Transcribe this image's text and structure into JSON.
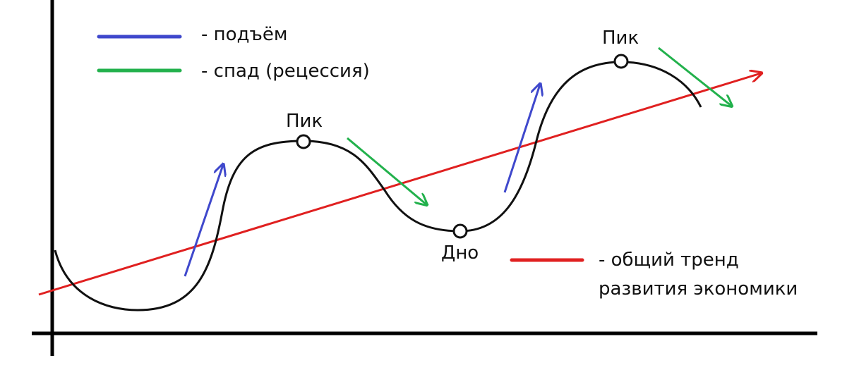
{
  "colors": {
    "curve": "#111111",
    "rise": "#3f48cc",
    "recession": "#22b14c",
    "trend": "#e02020",
    "axes": "#000000"
  },
  "legend": {
    "rise_label": "- подъём",
    "recession_label": "- спад (рецессия)",
    "trend_label_line1": "- общий тренд",
    "trend_label_line2": "развития экономики"
  },
  "points": {
    "peak1": "Пик",
    "trough": "Дно",
    "peak2": "Пик"
  }
}
